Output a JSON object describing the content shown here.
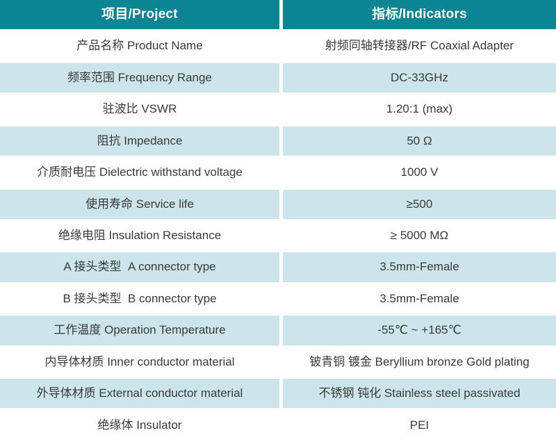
{
  "colors": {
    "header_bg": "#0B8594",
    "row_alt_bg": "#CCE5EB",
    "text": "#3A3A3A",
    "header_text": "#FFFFFF"
  },
  "table": {
    "header": {
      "project": "项目/Project",
      "indicators": "指标/Indicators"
    },
    "rows": [
      {
        "project": "产品名称 Product Name",
        "indicator": "射频同轴转接器/RF Coaxial Adapter"
      },
      {
        "project": "频率范围 Frequency Range",
        "indicator": "DC-33GHz"
      },
      {
        "project": "驻波比 VSWR",
        "indicator": "1.20:1 (max)"
      },
      {
        "project": "阻抗 Impedance",
        "indicator": "50 Ω"
      },
      {
        "project": "介质耐电压 Dielectric withstand voltage",
        "indicator": "1000 V"
      },
      {
        "project": "使用寿命 Service life",
        "indicator": "≥500"
      },
      {
        "project": "绝缘电阻 Insulation Resistance",
        "indicator": "≥ 5000 MΩ"
      },
      {
        "project": "A 接头类型  A connector type",
        "indicator": "3.5mm-Female"
      },
      {
        "project": "B 接头类型  B connector type",
        "indicator": "3.5mm-Female"
      },
      {
        "project": "工作温度 Operation Temperature",
        "indicator": "-55℃ ~ +165℃"
      },
      {
        "project": "内导体材质 Inner conductor material",
        "indicator": "铍青铜 镀金 Beryllium bronze Gold plating"
      },
      {
        "project": "外导体材质 External conductor material",
        "indicator": "不锈钢 钝化 Stainless steel passivated"
      },
      {
        "project": "绝缘体 Insulator",
        "indicator": "PEI"
      }
    ]
  }
}
